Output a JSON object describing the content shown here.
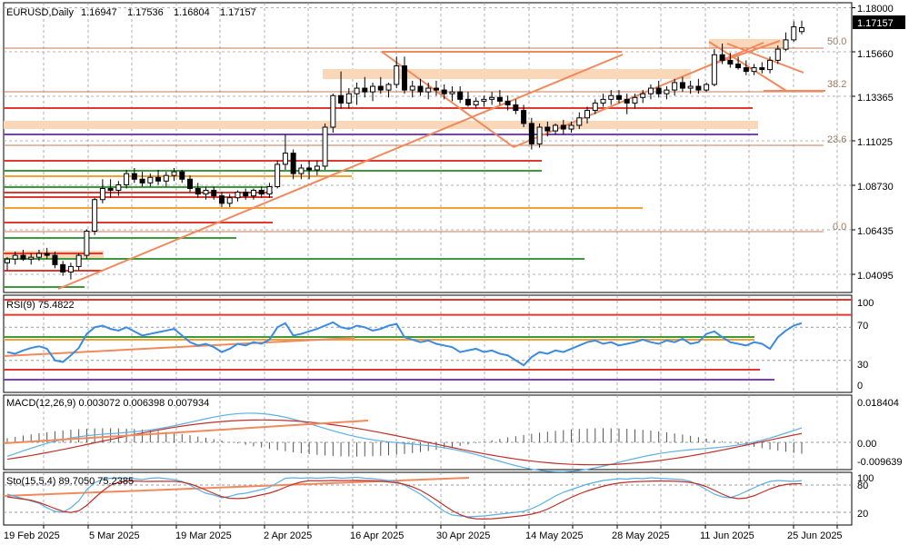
{
  "chart_data": {
    "type": "candlestick",
    "symbol": "EURUSD",
    "timeframe": "Daily",
    "header": {
      "label": "EURUSD,Daily",
      "ohlc": [
        "1.16947",
        "1.17536",
        "1.16804",
        "1.17157"
      ]
    },
    "current_price": "1.17157",
    "y_ticks": [
      "1.18000",
      "1.15660",
      "1.13365",
      "1.11025",
      "1.08730",
      "1.06435",
      "1.04095"
    ],
    "x_labels": [
      "19 Feb 2025",
      "5 Mar 2025",
      "19 Mar 2025",
      "2 Apr 2025",
      "16 Apr 2025",
      "30 Apr 2025",
      "14 May 2025",
      "28 May 2025",
      "11 Jun 2025",
      "25 Jun 2025"
    ],
    "fib_levels": [
      "50.0",
      "38.2",
      "23.6",
      "0.0"
    ],
    "candles": [
      [
        1.045,
        1.048,
        1.041,
        1.047
      ],
      [
        1.047,
        1.051,
        1.044,
        1.049
      ],
      [
        1.049,
        1.052,
        1.046,
        1.047
      ],
      [
        1.047,
        1.05,
        1.044,
        1.048
      ],
      [
        1.048,
        1.052,
        1.046,
        1.05
      ],
      [
        1.05,
        1.053,
        1.047,
        1.049
      ],
      [
        1.049,
        1.051,
        1.042,
        1.044
      ],
      [
        1.044,
        1.046,
        1.038,
        1.04
      ],
      [
        1.04,
        1.045,
        1.036,
        1.043
      ],
      [
        1.043,
        1.05,
        1.041,
        1.049
      ],
      [
        1.049,
        1.063,
        1.047,
        1.062
      ],
      [
        1.062,
        1.08,
        1.06,
        1.079
      ],
      [
        1.079,
        1.09,
        1.077,
        1.085
      ],
      [
        1.085,
        1.09,
        1.08,
        1.084
      ],
      [
        1.084,
        1.089,
        1.081,
        1.087
      ],
      [
        1.087,
        1.095,
        1.085,
        1.093
      ],
      [
        1.093,
        1.096,
        1.088,
        1.09
      ],
      [
        1.09,
        1.094,
        1.086,
        1.088
      ],
      [
        1.088,
        1.093,
        1.086,
        1.091
      ],
      [
        1.091,
        1.095,
        1.087,
        1.089
      ],
      [
        1.089,
        1.094,
        1.086,
        1.092
      ],
      [
        1.092,
        1.096,
        1.089,
        1.094
      ],
      [
        1.094,
        1.095,
        1.088,
        1.09
      ],
      [
        1.09,
        1.092,
        1.083,
        1.085
      ],
      [
        1.085,
        1.088,
        1.08,
        1.082
      ],
      [
        1.082,
        1.086,
        1.079,
        1.084
      ],
      [
        1.084,
        1.086,
        1.079,
        1.081
      ],
      [
        1.081,
        1.083,
        1.075,
        1.077
      ],
      [
        1.077,
        1.082,
        1.075,
        1.08
      ],
      [
        1.08,
        1.084,
        1.078,
        1.083
      ],
      [
        1.083,
        1.085,
        1.079,
        1.081
      ],
      [
        1.081,
        1.085,
        1.079,
        1.084
      ],
      [
        1.084,
        1.086,
        1.08,
        1.082
      ],
      [
        1.082,
        1.088,
        1.08,
        1.086
      ],
      [
        1.086,
        1.1,
        1.085,
        1.098
      ],
      [
        1.098,
        1.114,
        1.095,
        1.104
      ],
      [
        1.104,
        1.106,
        1.09,
        1.093
      ],
      [
        1.093,
        1.098,
        1.09,
        1.096
      ],
      [
        1.096,
        1.1,
        1.09,
        1.095
      ],
      [
        1.095,
        1.1,
        1.092,
        1.097
      ],
      [
        1.097,
        1.12,
        1.095,
        1.118
      ],
      [
        1.118,
        1.136,
        1.115,
        1.135
      ],
      [
        1.135,
        1.148,
        1.128,
        1.131
      ],
      [
        1.131,
        1.139,
        1.128,
        1.136
      ],
      [
        1.136,
        1.142,
        1.13,
        1.139
      ],
      [
        1.139,
        1.145,
        1.134,
        1.137
      ],
      [
        1.137,
        1.142,
        1.132,
        1.14
      ],
      [
        1.14,
        1.145,
        1.136,
        1.138
      ],
      [
        1.138,
        1.142,
        1.134,
        1.141
      ],
      [
        1.141,
        1.156,
        1.139,
        1.151
      ],
      [
        1.151,
        1.156,
        1.136,
        1.138
      ],
      [
        1.138,
        1.143,
        1.134,
        1.14
      ],
      [
        1.14,
        1.144,
        1.135,
        1.137
      ],
      [
        1.137,
        1.142,
        1.133,
        1.139
      ],
      [
        1.139,
        1.143,
        1.135,
        1.138
      ],
      [
        1.138,
        1.141,
        1.133,
        1.136
      ],
      [
        1.136,
        1.14,
        1.132,
        1.137
      ],
      [
        1.137,
        1.14,
        1.131,
        1.133
      ],
      [
        1.133,
        1.137,
        1.129,
        1.13
      ],
      [
        1.13,
        1.134,
        1.128,
        1.132
      ],
      [
        1.132,
        1.135,
        1.129,
        1.133
      ],
      [
        1.133,
        1.137,
        1.13,
        1.134
      ],
      [
        1.134,
        1.138,
        1.13,
        1.132
      ],
      [
        1.132,
        1.135,
        1.127,
        1.13
      ],
      [
        1.13,
        1.133,
        1.125,
        1.127
      ],
      [
        1.127,
        1.13,
        1.118,
        1.12
      ],
      [
        1.12,
        1.123,
        1.106,
        1.109
      ],
      [
        1.109,
        1.12,
        1.107,
        1.118
      ],
      [
        1.118,
        1.121,
        1.113,
        1.116
      ],
      [
        1.116,
        1.12,
        1.114,
        1.119
      ],
      [
        1.119,
        1.122,
        1.114,
        1.117
      ],
      [
        1.117,
        1.121,
        1.115,
        1.119
      ],
      [
        1.119,
        1.126,
        1.117,
        1.123
      ],
      [
        1.123,
        1.129,
        1.12,
        1.127
      ],
      [
        1.127,
        1.133,
        1.125,
        1.131
      ],
      [
        1.131,
        1.136,
        1.129,
        1.133
      ],
      [
        1.133,
        1.138,
        1.13,
        1.135
      ],
      [
        1.135,
        1.138,
        1.131,
        1.133
      ],
      [
        1.133,
        1.136,
        1.125,
        1.131
      ],
      [
        1.131,
        1.136,
        1.128,
        1.134
      ],
      [
        1.134,
        1.138,
        1.131,
        1.136
      ],
      [
        1.136,
        1.141,
        1.133,
        1.139
      ],
      [
        1.139,
        1.143,
        1.134,
        1.136
      ],
      [
        1.136,
        1.14,
        1.133,
        1.138
      ],
      [
        1.138,
        1.144,
        1.135,
        1.142
      ],
      [
        1.142,
        1.145,
        1.137,
        1.139
      ],
      [
        1.139,
        1.143,
        1.136,
        1.14
      ],
      [
        1.14,
        1.144,
        1.136,
        1.138
      ],
      [
        1.138,
        1.142,
        1.137,
        1.141
      ],
      [
        1.141,
        1.16,
        1.14,
        1.157
      ],
      [
        1.157,
        1.163,
        1.152,
        1.154
      ],
      [
        1.154,
        1.158,
        1.15,
        1.152
      ],
      [
        1.152,
        1.156,
        1.149,
        1.15
      ],
      [
        1.15,
        1.154,
        1.146,
        1.148
      ],
      [
        1.148,
        1.152,
        1.146,
        1.15
      ],
      [
        1.15,
        1.153,
        1.147,
        1.149
      ],
      [
        1.149,
        1.156,
        1.147,
        1.154
      ],
      [
        1.154,
        1.162,
        1.152,
        1.16
      ],
      [
        1.16,
        1.169,
        1.159,
        1.165
      ],
      [
        1.165,
        1.175,
        1.164,
        1.172
      ],
      [
        1.16947,
        1.17536,
        1.16804,
        1.17157
      ]
    ],
    "indicators": [
      {
        "name": "RSI(9)",
        "label": "RSI(9) 75.4822",
        "levels": [
          "100",
          "70",
          "30",
          "0"
        ]
      },
      {
        "name": "MACD(12,26,9)",
        "label": "MACD(12,26,9) 0.003072 0.006398 0.007934",
        "levels": [
          "0.018404",
          "0.00",
          "-0.009639"
        ]
      },
      {
        "name": "Sto(15,5,4)",
        "label": "Sto(15,5,4) 89.7050 75.2385",
        "levels": [
          "100",
          "80",
          "20"
        ]
      }
    ],
    "colors": {
      "grid": "#9a9a9a",
      "trendline": "#f08a5d",
      "zone": "#fad7b8",
      "support_red": "#e03a2e",
      "support_green": "#3f9a3f",
      "support_orange": "#f5a033",
      "support_purple": "#7a3fbf",
      "rsi": "#3b8be0",
      "macd_signal": "#c0302a",
      "macd_main": "#5ab0e6",
      "price_tag": "#000000"
    }
  }
}
